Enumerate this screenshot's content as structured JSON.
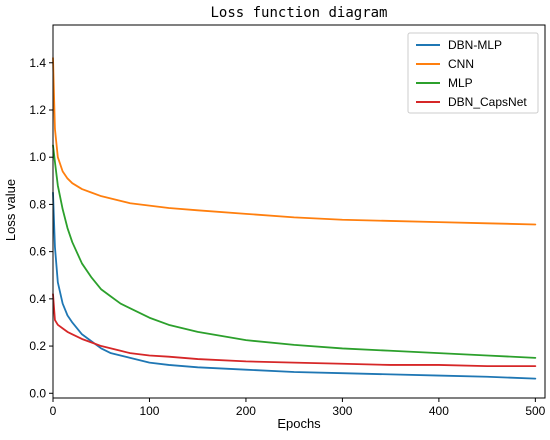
{
  "chart_data": {
    "type": "line",
    "title": "Loss function diagram",
    "xlabel": "Epochs",
    "ylabel": "Loss value",
    "xlim": [
      0,
      510
    ],
    "ylim": [
      -0.02,
      1.56
    ],
    "xticks": [
      0,
      100,
      200,
      300,
      400,
      500
    ],
    "yticks": [
      0.0,
      0.2,
      0.4,
      0.6,
      0.8,
      1.0,
      1.2,
      1.4
    ],
    "xtick_labels": [
      "0",
      "100",
      "200",
      "300",
      "400",
      "500"
    ],
    "ytick_labels": [
      "0.0",
      "0.2",
      "0.4",
      "0.6",
      "0.8",
      "1.0",
      "1.2",
      "1.4"
    ],
    "grid": false,
    "legend_position": "top-right",
    "series": [
      {
        "name": "DBN-MLP",
        "color": "#1f77b4",
        "x": [
          0,
          2,
          5,
          10,
          15,
          20,
          30,
          40,
          50,
          60,
          70,
          80,
          100,
          120,
          150,
          200,
          250,
          300,
          350,
          400,
          450,
          500
        ],
        "y": [
          0.85,
          0.62,
          0.47,
          0.38,
          0.33,
          0.3,
          0.25,
          0.22,
          0.19,
          0.17,
          0.16,
          0.15,
          0.13,
          0.12,
          0.11,
          0.1,
          0.09,
          0.085,
          0.08,
          0.075,
          0.07,
          0.062
        ]
      },
      {
        "name": "CNN",
        "color": "#ff7f0e",
        "x": [
          0,
          2,
          5,
          10,
          15,
          20,
          30,
          40,
          50,
          60,
          70,
          80,
          100,
          120,
          150,
          200,
          250,
          300,
          350,
          400,
          450,
          500
        ],
        "y": [
          1.42,
          1.12,
          1.0,
          0.94,
          0.91,
          0.89,
          0.865,
          0.85,
          0.835,
          0.825,
          0.815,
          0.805,
          0.795,
          0.785,
          0.775,
          0.76,
          0.745,
          0.735,
          0.73,
          0.725,
          0.72,
          0.715
        ]
      },
      {
        "name": "MLP",
        "color": "#2ca02c",
        "x": [
          0,
          2,
          5,
          10,
          15,
          20,
          30,
          40,
          50,
          60,
          70,
          80,
          100,
          120,
          150,
          200,
          250,
          300,
          350,
          400,
          450,
          500
        ],
        "y": [
          1.05,
          0.98,
          0.88,
          0.78,
          0.7,
          0.64,
          0.55,
          0.49,
          0.44,
          0.41,
          0.38,
          0.36,
          0.32,
          0.29,
          0.26,
          0.225,
          0.205,
          0.19,
          0.18,
          0.17,
          0.16,
          0.15
        ]
      },
      {
        "name": "DBN_CapsNet",
        "color": "#d62728",
        "x": [
          0,
          2,
          5,
          10,
          15,
          20,
          30,
          40,
          50,
          60,
          70,
          80,
          100,
          120,
          150,
          200,
          250,
          300,
          350,
          400,
          450,
          500
        ],
        "y": [
          0.42,
          0.31,
          0.29,
          0.275,
          0.26,
          0.25,
          0.23,
          0.215,
          0.2,
          0.19,
          0.18,
          0.17,
          0.16,
          0.155,
          0.145,
          0.135,
          0.13,
          0.125,
          0.12,
          0.12,
          0.115,
          0.115
        ]
      }
    ]
  }
}
